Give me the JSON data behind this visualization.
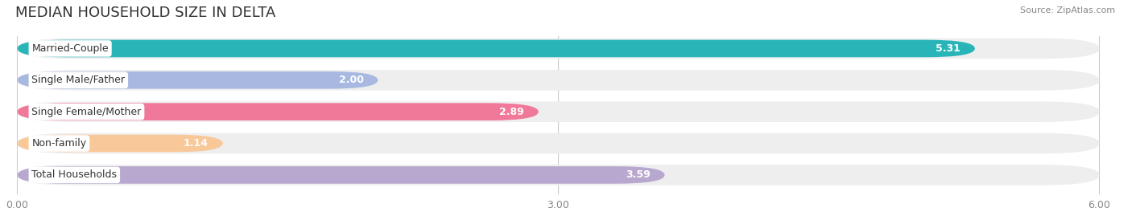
{
  "title": "MEDIAN HOUSEHOLD SIZE IN DELTA",
  "source": "Source: ZipAtlas.com",
  "categories": [
    "Married-Couple",
    "Single Male/Father",
    "Single Female/Mother",
    "Non-family",
    "Total Households"
  ],
  "values": [
    5.31,
    2.0,
    2.89,
    1.14,
    3.59
  ],
  "bar_colors": [
    "#29b5b8",
    "#a8b8e0",
    "#f07898",
    "#f8c898",
    "#b8a8d0"
  ],
  "track_color": "#eeeeee",
  "xlim": [
    0,
    6.0
  ],
  "xticks": [
    0.0,
    3.0,
    6.0
  ],
  "xtick_labels": [
    "0.00",
    "3.00",
    "6.00"
  ],
  "background_color": "#ffffff",
  "title_fontsize": 13,
  "label_fontsize": 9,
  "value_fontsize": 9
}
